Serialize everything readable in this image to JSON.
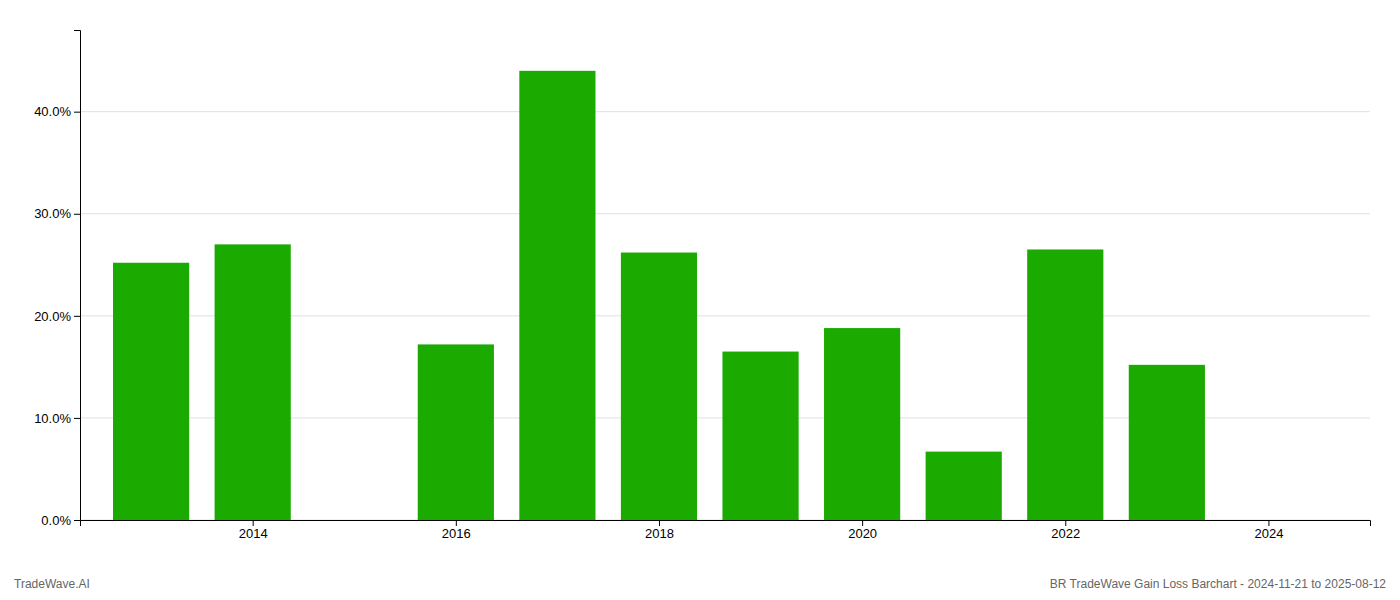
{
  "chart_data": {
    "type": "bar",
    "x": [
      2013,
      2014,
      2016,
      2017,
      2018,
      2019,
      2020,
      2021,
      2022,
      2023
    ],
    "values": [
      0.252,
      0.27,
      0.172,
      0.44,
      0.262,
      0.165,
      0.188,
      0.067,
      0.265,
      0.152
    ],
    "color": "#1aaa00",
    "xlim": [
      2012.3,
      2025.0
    ],
    "ylim": [
      0.0,
      0.48
    ],
    "xticks": [
      2014,
      2016,
      2018,
      2020,
      2022,
      2024
    ],
    "yticks": [
      {
        "value": 0.0,
        "label": "0.0%"
      },
      {
        "value": 0.1,
        "label": "10.0%"
      },
      {
        "value": 0.2,
        "label": "20.0%"
      },
      {
        "value": 0.3,
        "label": "30.0%"
      },
      {
        "value": 0.4,
        "label": "40.0%"
      }
    ],
    "grid": true,
    "annotations": [
      "TradeWave.AI",
      "BR TradeWave Gain Loss Barchart - 2024-11-21 to 2025-08-12"
    ]
  }
}
